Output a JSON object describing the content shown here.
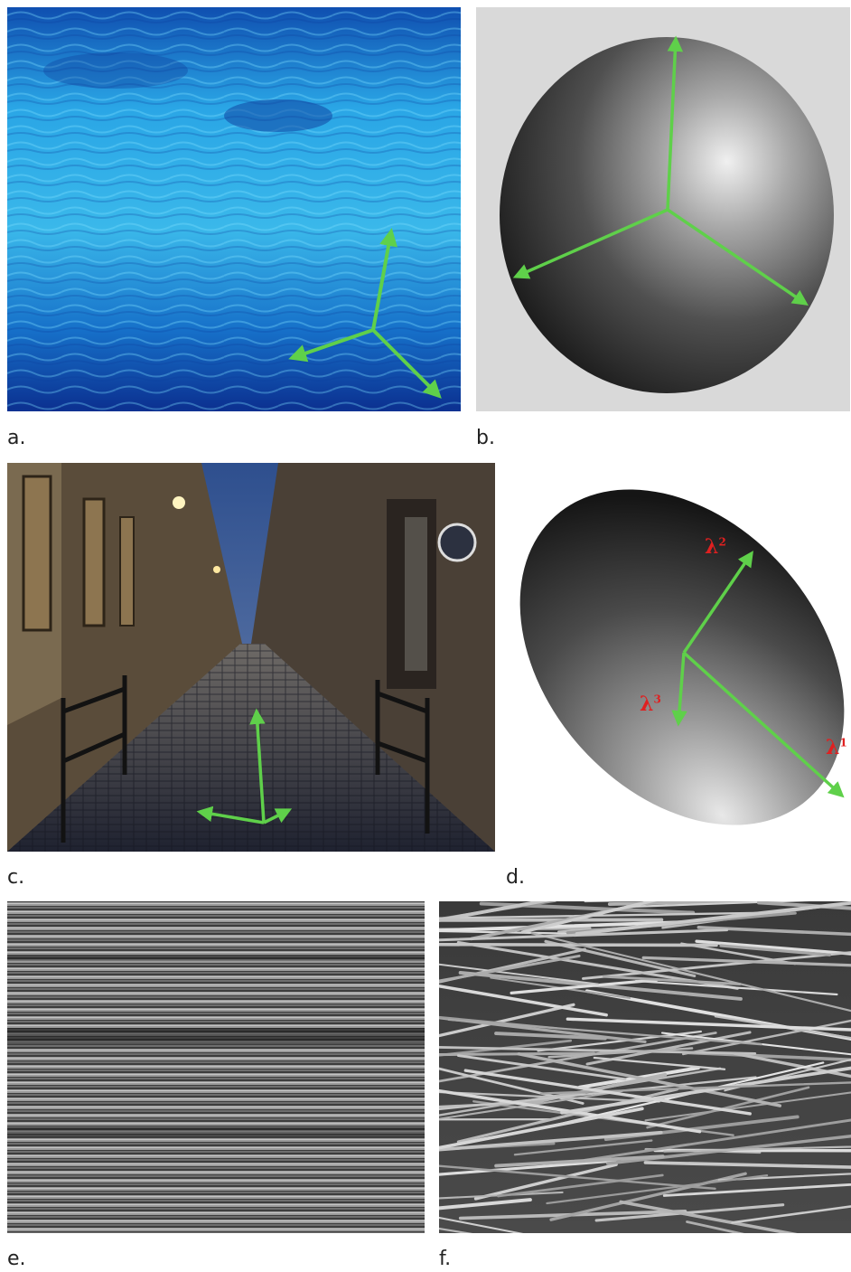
{
  "panels": [
    {
      "id": "a",
      "label": "a."
    },
    {
      "id": "b",
      "label": "b."
    },
    {
      "id": "c",
      "label": "c."
    },
    {
      "id": "d",
      "label": "d."
    },
    {
      "id": "e",
      "label": "e."
    },
    {
      "id": "f",
      "label": "f."
    }
  ],
  "eigen_labels": {
    "lambda1": {
      "symbol": "λ",
      "index": "1"
    },
    "lambda2": {
      "symbol": "λ",
      "index": "2"
    },
    "lambda3": {
      "symbol": "λ",
      "index": "3"
    }
  },
  "colors": {
    "arrow_green": "#5fd04a",
    "lambda_red": "#e02020",
    "water_light": "#3fc3ee",
    "water_dark": "#0d3fa0",
    "sphere_bg": "#d9d9d9"
  }
}
